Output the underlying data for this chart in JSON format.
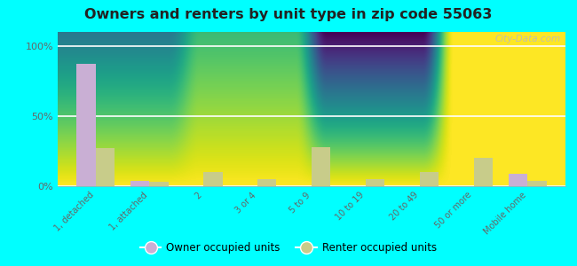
{
  "title": "Owners and renters by unit type in zip code 55063",
  "categories": [
    "1, detached",
    "1, attached",
    "2",
    "3 or 4",
    "5 to 9",
    "10 to 19",
    "20 to 49",
    "50 or more",
    "Mobile home"
  ],
  "owner_values": [
    87,
    4,
    0,
    0,
    0,
    0,
    0,
    0,
    9
  ],
  "renter_values": [
    27,
    3,
    10,
    5,
    28,
    5,
    10,
    20,
    4
  ],
  "owner_color": "#c9afd4",
  "renter_color": "#c8cc8a",
  "bg_color": "#00ffff",
  "plot_bg_top": "#d8e8c0",
  "plot_bg_bottom": "#ffffff",
  "yticks": [
    0,
    50,
    100
  ],
  "ylim": [
    0,
    110
  ],
  "bar_width": 0.35,
  "legend_owner": "Owner occupied units",
  "legend_renter": "Renter occupied units",
  "watermark": "City-Data.com"
}
